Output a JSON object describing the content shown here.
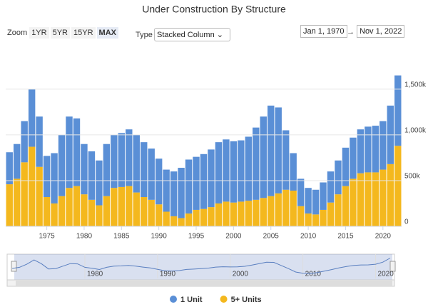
{
  "controls": {
    "zoom_label": "Zoom",
    "zoom_buttons": [
      "1YR",
      "5YR",
      "15YR",
      "MAX"
    ],
    "type_label": "Type",
    "type_value": "Stacked Column",
    "date_from": "Jan 1, 1970",
    "date_separator": "→",
    "date_to": "Nov 1, 2022"
  },
  "chart_data": {
    "type": "stacked-column",
    "title": "Under Construction By Structure",
    "x": [
      1970,
      1971,
      1972,
      1973,
      1974,
      1975,
      1976,
      1977,
      1978,
      1979,
      1980,
      1981,
      1982,
      1983,
      1984,
      1985,
      1986,
      1987,
      1988,
      1989,
      1990,
      1991,
      1992,
      1993,
      1994,
      1995,
      1996,
      1997,
      1998,
      1999,
      2000,
      2001,
      2002,
      2003,
      2004,
      2005,
      2006,
      2007,
      2008,
      2009,
      2010,
      2011,
      2012,
      2013,
      2014,
      2015,
      2016,
      2017,
      2018,
      2019,
      2020,
      2021,
      2022
    ],
    "series": [
      {
        "name": "1 Unit",
        "color": "#5a8fd6",
        "values": [
          350000,
          380000,
          450000,
          630000,
          550000,
          450000,
          550000,
          670000,
          780000,
          740000,
          550000,
          530000,
          490000,
          570000,
          580000,
          590000,
          620000,
          630000,
          600000,
          560000,
          500000,
          460000,
          490000,
          550000,
          590000,
          580000,
          600000,
          630000,
          670000,
          680000,
          670000,
          670000,
          700000,
          790000,
          890000,
          990000,
          940000,
          650000,
          410000,
          300000,
          280000,
          270000,
          300000,
          340000,
          370000,
          420000,
          450000,
          480000,
          500000,
          510000,
          530000,
          640000,
          770000
        ]
      },
      {
        "name": "5+ Units",
        "color": "#f4b81e",
        "values": [
          460000,
          520000,
          700000,
          870000,
          650000,
          320000,
          250000,
          330000,
          420000,
          440000,
          350000,
          290000,
          230000,
          330000,
          420000,
          430000,
          440000,
          370000,
          320000,
          290000,
          240000,
          160000,
          110000,
          90000,
          140000,
          180000,
          190000,
          210000,
          250000,
          270000,
          260000,
          270000,
          280000,
          290000,
          310000,
          330000,
          360000,
          400000,
          390000,
          220000,
          140000,
          130000,
          180000,
          260000,
          350000,
          440000,
          520000,
          580000,
          590000,
          590000,
          620000,
          680000,
          880000
        ]
      }
    ],
    "xlim": [
      1969.5,
      2022.5
    ],
    "xticks": [
      1975,
      1980,
      1985,
      1990,
      1995,
      2000,
      2005,
      2010,
      2015,
      2020
    ],
    "ylim": [
      0,
      1850000
    ],
    "yticks": [
      0,
      {
        "value": 500000,
        "label": "500k"
      },
      {
        "value": 1000000,
        "label": "1,000k"
      },
      {
        "value": 1500000,
        "label": "1,500k"
      }
    ],
    "grid": true,
    "navigator": {
      "xticks": [
        1980,
        1990,
        2000,
        2010,
        2020
      ]
    }
  }
}
